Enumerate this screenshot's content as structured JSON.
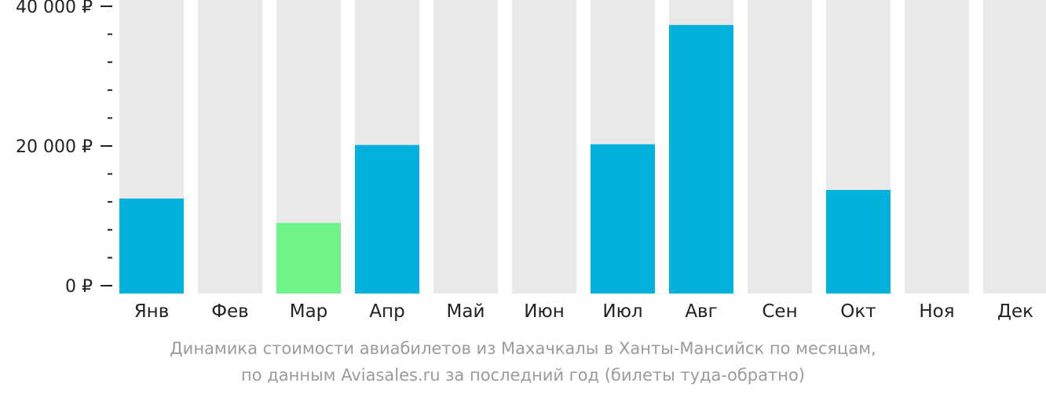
{
  "chart_data": {
    "type": "bar",
    "categories": [
      "Янв",
      "Фев",
      "Мар",
      "Апр",
      "Май",
      "Июн",
      "Июл",
      "Авг",
      "Сен",
      "Окт",
      "Ноя",
      "Дек"
    ],
    "values": [
      13300,
      null,
      9900,
      20800,
      null,
      null,
      20900,
      37600,
      null,
      14500,
      null,
      null
    ],
    "highlight_index": 2,
    "ylim": [
      0,
      41000
    ],
    "yticks": [
      {
        "value": 0,
        "label": "0 ₽"
      },
      {
        "value": 20000,
        "label": "20 000 ₽"
      },
      {
        "value": 40000,
        "label": "40 000 ₽"
      }
    ],
    "minor_tick_step": 4000,
    "colors": {
      "bar": "#02b0dc",
      "highlight": "#6ef489",
      "background_column": "#e9e9e9",
      "tick": "#222222",
      "label": "#222222"
    }
  },
  "caption": {
    "line1": "Динамика стоимости авиабилетов из Махачкалы в Ханты-Мансийск по месяцам,",
    "line2": "по данным Aviasales.ru за последний год (билеты туда-обратно)"
  }
}
